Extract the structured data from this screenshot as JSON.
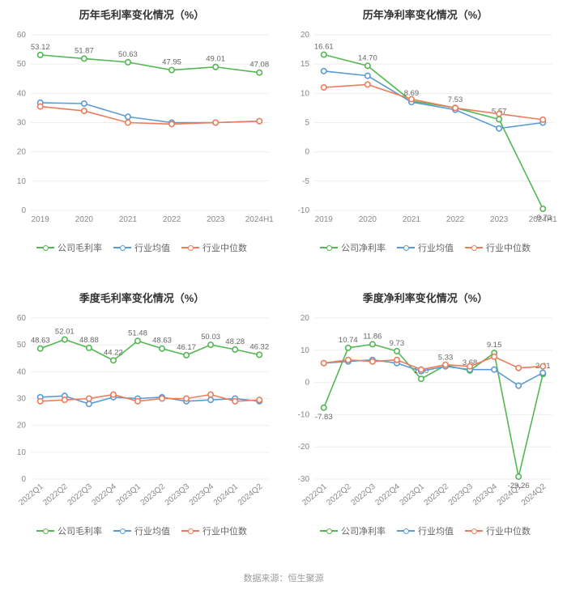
{
  "footer": "数据来源：恒生聚源",
  "colors": {
    "series_company": "#52b852",
    "series_avg": "#5b9bd5",
    "series_median": "#ed7d5a",
    "grid": "#eeeeee",
    "axis_text": "#888888",
    "title_text": "#333333",
    "label_text": "#666666",
    "background": "#ffffff"
  },
  "legend_labels": {
    "gross_company": "公司毛利率",
    "net_company": "公司净利率",
    "avg": "行业均值",
    "median": "行业中位数"
  },
  "charts": [
    {
      "id": "annual_gross",
      "title": "历年毛利率变化情况（%）",
      "legend_company_key": "gross_company",
      "x_labels": [
        "2019",
        "2020",
        "2021",
        "2022",
        "2023",
        "2024H1"
      ],
      "x_rotate": 0,
      "ylim": [
        0,
        60
      ],
      "ytick_step": 10,
      "series": [
        {
          "key": "company",
          "color": "#52b852",
          "values": [
            53.12,
            51.87,
            50.63,
            47.95,
            49.01,
            47.08
          ],
          "show_labels": true
        },
        {
          "key": "avg",
          "color": "#5b9bd5",
          "values": [
            36.8,
            36.5,
            32.0,
            30.0,
            30.0,
            30.5
          ],
          "show_labels": false
        },
        {
          "key": "median",
          "color": "#ed7d5a",
          "values": [
            35.5,
            34.0,
            30.0,
            29.5,
            30.0,
            30.5
          ],
          "show_labels": false
        }
      ]
    },
    {
      "id": "annual_net",
      "title": "历年净利率变化情况（%）",
      "legend_company_key": "net_company",
      "x_labels": [
        "2019",
        "2020",
        "2021",
        "2022",
        "2023",
        "2024H1"
      ],
      "x_rotate": 0,
      "ylim": [
        -10,
        20
      ],
      "ytick_step": 5,
      "series": [
        {
          "key": "company",
          "color": "#52b852",
          "values": [
            16.61,
            14.7,
            8.69,
            7.53,
            5.57,
            -9.73
          ],
          "show_labels": true
        },
        {
          "key": "avg",
          "color": "#5b9bd5",
          "values": [
            13.8,
            13.0,
            8.5,
            7.2,
            4.0,
            5.0
          ],
          "show_labels": false
        },
        {
          "key": "median",
          "color": "#ed7d5a",
          "values": [
            11.0,
            11.5,
            9.0,
            7.5,
            6.5,
            5.5
          ],
          "show_labels": false
        }
      ]
    },
    {
      "id": "quarterly_gross",
      "title": "季度毛利率变化情况（%）",
      "legend_company_key": "gross_company",
      "x_labels": [
        "2022Q1",
        "2022Q2",
        "2022Q3",
        "2022Q4",
        "2023Q1",
        "2023Q2",
        "2023Q3",
        "2023Q4",
        "2024Q1",
        "2024Q2"
      ],
      "x_rotate": -40,
      "ylim": [
        0,
        60
      ],
      "ytick_step": 10,
      "series": [
        {
          "key": "company",
          "color": "#52b852",
          "values": [
            48.63,
            52.01,
            48.88,
            44.22,
            51.48,
            48.63,
            46.17,
            50.03,
            48.28,
            46.32
          ],
          "show_labels": true
        },
        {
          "key": "avg",
          "color": "#5b9bd5",
          "values": [
            30.5,
            31.0,
            28.0,
            30.5,
            30.0,
            30.5,
            29.0,
            29.5,
            30.0,
            29.0
          ],
          "show_labels": false
        },
        {
          "key": "median",
          "color": "#ed7d5a",
          "values": [
            29.0,
            29.5,
            30.0,
            31.5,
            29.0,
            30.0,
            30.0,
            31.5,
            29.0,
            29.5
          ],
          "show_labels": false
        }
      ]
    },
    {
      "id": "quarterly_net",
      "title": "季度净利率变化情况（%）",
      "legend_company_key": "net_company",
      "x_labels": [
        "2022Q1",
        "2022Q2",
        "2022Q3",
        "2022Q4",
        "2023Q1",
        "2023Q2",
        "2023Q3",
        "2023Q4",
        "2024Q1",
        "2024Q2"
      ],
      "x_rotate": -40,
      "ylim": [
        -30,
        20
      ],
      "ytick_step": 10,
      "series": [
        {
          "key": "company",
          "color": "#52b852",
          "values": [
            -7.83,
            10.74,
            11.86,
            9.73,
            1.1,
            5.33,
            3.68,
            9.15,
            -29.26,
            2.61
          ],
          "show_labels": true
        },
        {
          "key": "avg",
          "color": "#5b9bd5",
          "values": [
            6.0,
            6.5,
            7.0,
            6.0,
            3.5,
            5.0,
            4.0,
            4.0,
            -1.0,
            3.0
          ],
          "show_labels": false
        },
        {
          "key": "median",
          "color": "#ed7d5a",
          "values": [
            6.0,
            7.0,
            6.5,
            7.0,
            4.0,
            5.5,
            5.0,
            8.0,
            4.5,
            5.0
          ],
          "show_labels": false
        }
      ]
    }
  ]
}
